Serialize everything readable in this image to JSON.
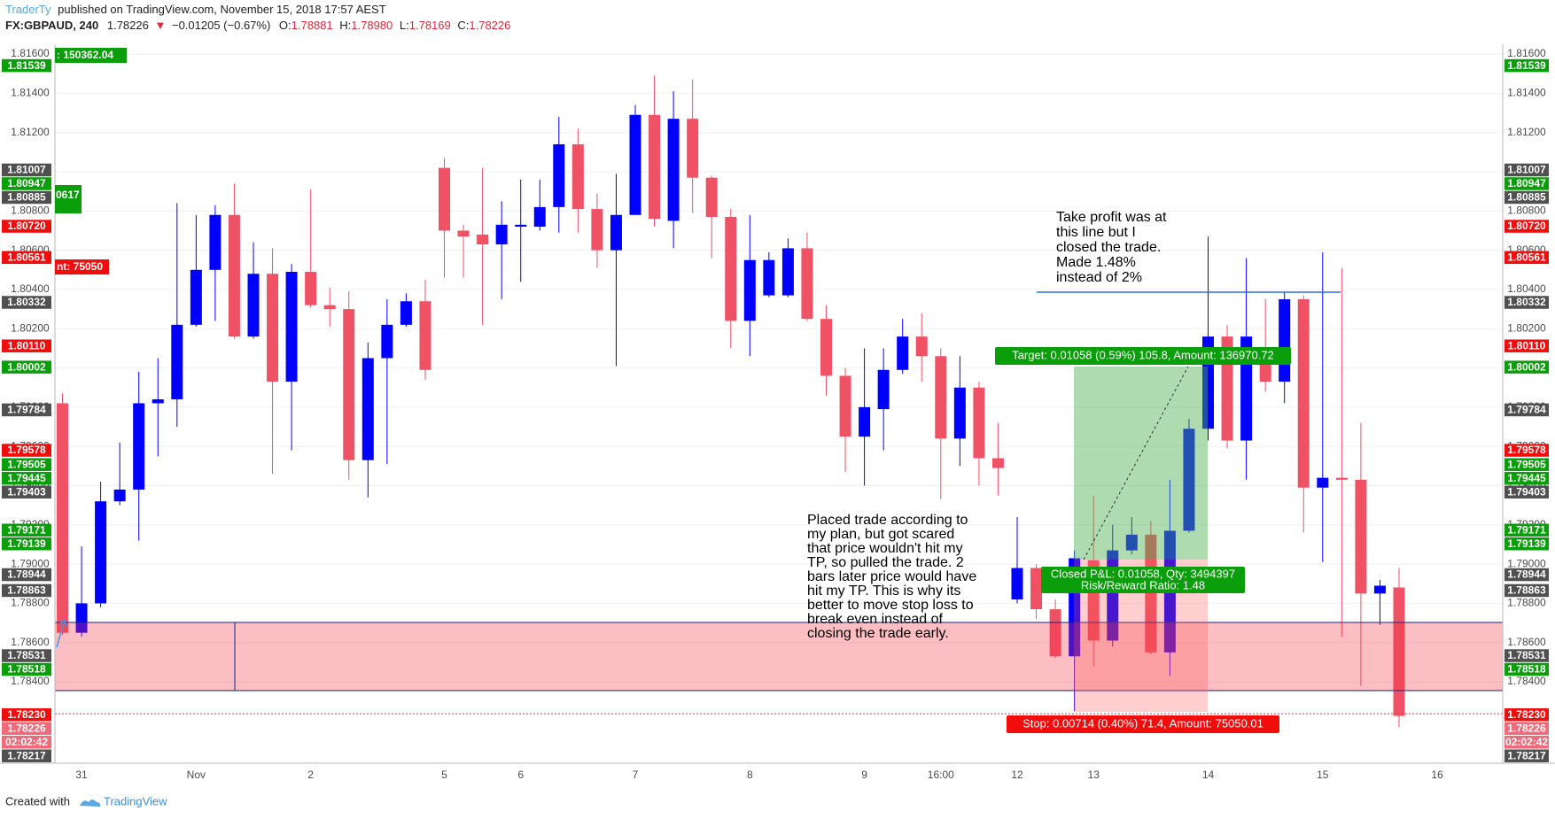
{
  "header": {
    "author": "TraderTy",
    "published": "published on TradingView.com, November 15, 2018 17:57 AEST",
    "symbol": "FX:GBPAUD, 240",
    "last": "1.78226",
    "arrow": "▼",
    "change": "−0.01205 (−0.67%)",
    "ohlc": [
      {
        "key": "O:",
        "value": "1.78881"
      },
      {
        "key": "H:",
        "value": "1.78980"
      },
      {
        "key": "L:",
        "value": "1.78169"
      },
      {
        "key": "C:",
        "value": "1.78226"
      }
    ]
  },
  "footer": {
    "created": "Created with",
    "brand": "TradingView"
  },
  "chart_data": {
    "type": "candlestick",
    "categories": [
      null,
      "31",
      null,
      null,
      null,
      null,
      null,
      "Nov",
      null,
      null,
      null,
      null,
      null,
      "2",
      null,
      null,
      null,
      null,
      null,
      null,
      "5",
      null,
      null,
      null,
      "6",
      null,
      null,
      null,
      null,
      null,
      "7",
      null,
      null,
      null,
      null,
      null,
      "8",
      null,
      null,
      null,
      null,
      null,
      "9",
      null,
      null,
      null,
      "16:00",
      null,
      null,
      null,
      "12",
      null,
      null,
      null,
      "13",
      null,
      null,
      null,
      null,
      null,
      "14",
      null,
      null,
      null,
      null,
      null,
      "15",
      null,
      null,
      null,
      null,
      null,
      "16"
    ],
    "open": [
      1.7982,
      1.7865,
      1.788,
      1.7932,
      1.7938,
      1.7982,
      1.7984,
      1.8022,
      1.805,
      1.8078,
      1.8016,
      1.8048,
      1.7993,
      1.8049,
      1.8032,
      1.803,
      1.7953,
      1.8005,
      1.8022,
      1.8034,
      1.8102,
      1.807,
      1.8068,
      1.8063,
      1.8072,
      1.8072,
      1.8082,
      1.8114,
      1.8081,
      1.806,
      1.8078,
      1.8129,
      1.8075,
      1.8127,
      1.8097,
      1.8077,
      1.8024,
      1.8037,
      1.8037,
      1.8061,
      1.8025,
      1.7996,
      1.7965,
      1.7979,
      1.7999,
      1.8016,
      1.8006,
      1.7964,
      1.799,
      1.7954,
      1.7882,
      1.7898,
      1.7877,
      1.7853,
      1.7902,
      1.7861,
      1.7907,
      1.7915,
      1.7855,
      1.7917,
      1.7969,
      1.8016,
      1.7963,
      1.8004,
      1.7993,
      1.8035,
      1.7939,
      1.7944,
      1.7943,
      1.7885,
      1.78881,
      null,
      null
    ],
    "high": [
      1.7987,
      1.7909,
      1.7942,
      1.7962,
      1.7998,
      1.8005,
      1.8084,
      1.8078,
      1.8083,
      1.8094,
      1.8064,
      1.8061,
      1.8053,
      1.8091,
      1.8041,
      1.8039,
      1.8013,
      1.8035,
      1.8038,
      1.8045,
      1.8107,
      1.8073,
      1.8102,
      1.8085,
      1.8096,
      1.8096,
      1.8128,
      1.8122,
      1.8089,
      1.8099,
      1.8134,
      1.8149,
      1.8141,
      1.8147,
      1.8098,
      1.8081,
      1.8078,
      1.8059,
      1.8066,
      1.8069,
      1.8032,
      1.8,
      1.801,
      1.801,
      1.8025,
      1.8028,
      1.801,
      1.8006,
      1.7993,
      1.7972,
      1.7924,
      1.79,
      1.7882,
      1.7907,
      1.7935,
      1.792,
      1.7924,
      1.7922,
      1.7943,
      1.7974,
      1.8067,
      1.8022,
      1.8056,
      1.8035,
      1.8039,
      1.8037,
      1.8059,
      1.8051,
      1.7972,
      1.7892,
      1.7898,
      null,
      null
    ],
    "low": [
      1.7864,
      1.7863,
      1.7878,
      1.793,
      1.7912,
      1.7955,
      1.797,
      1.8021,
      1.8024,
      1.8015,
      1.8015,
      1.7946,
      1.7958,
      1.8031,
      1.8021,
      1.7943,
      1.7934,
      1.7951,
      1.8021,
      1.7994,
      1.8046,
      1.8046,
      1.8022,
      1.8035,
      1.8044,
      1.807,
      1.8069,
      1.8069,
      1.8051,
      1.8001,
      1.8078,
      1.8072,
      1.8061,
      1.8079,
      1.8056,
      1.801,
      1.8006,
      1.8036,
      1.8036,
      1.8024,
      1.7986,
      1.7947,
      1.794,
      1.7958,
      1.7997,
      1.7993,
      1.7933,
      1.795,
      1.794,
      1.7935,
      1.788,
      1.7872,
      1.7852,
      1.7825,
      1.7848,
      1.7858,
      1.7905,
      1.7854,
      1.7843,
      1.7916,
      1.7963,
      1.7959,
      1.7943,
      1.7988,
      1.7982,
      1.7916,
      1.7901,
      1.7863,
      1.7838,
      1.7869,
      1.78169,
      null,
      null
    ],
    "close": [
      1.7865,
      1.788,
      1.7932,
      1.7938,
      1.7982,
      1.7984,
      1.8022,
      1.805,
      1.8078,
      1.8016,
      1.8048,
      1.7993,
      1.8049,
      1.8032,
      1.803,
      1.7953,
      1.8005,
      1.8022,
      1.8034,
      1.7999,
      1.807,
      1.8067,
      1.8063,
      1.8073,
      1.8073,
      1.8082,
      1.8114,
      1.8081,
      1.806,
      1.8078,
      1.8129,
      1.8076,
      1.8127,
      1.8097,
      1.8077,
      1.8024,
      1.8055,
      1.8055,
      1.8061,
      1.8025,
      1.7996,
      1.7965,
      1.798,
      1.7999,
      1.8016,
      1.8006,
      1.7964,
      1.799,
      1.7954,
      1.7949,
      1.7898,
      1.7877,
      1.7853,
      1.7903,
      1.7861,
      1.7907,
      1.7915,
      1.7855,
      1.7917,
      1.7969,
      1.8016,
      1.7963,
      1.8016,
      1.7993,
      1.8035,
      1.7939,
      1.7944,
      1.7943,
      1.7885,
      1.7889,
      1.78226,
      null,
      null
    ],
    "up_color": "#0000ff",
    "down_color": "#ef5265",
    "ylim": [
      1.77985,
      1.8165
    ],
    "yticks": [
      {
        "value": 1.784,
        "label": "1.78400"
      },
      {
        "value": 1.786,
        "label": "1.78600"
      },
      {
        "value": 1.788,
        "label": "1.78800"
      },
      {
        "value": 1.79,
        "label": "1.79000"
      },
      {
        "value": 1.792,
        "label": "1.79200"
      },
      {
        "value": 1.794,
        "label": "1.79400"
      },
      {
        "value": 1.796,
        "label": "1.79600"
      },
      {
        "value": 1.798,
        "label": "1.79800"
      },
      {
        "value": 1.8,
        "label": "1.80000"
      },
      {
        "value": 1.802,
        "label": "1.80200"
      },
      {
        "value": 1.804,
        "label": "1.80400"
      },
      {
        "value": 1.806,
        "label": "1.80600"
      },
      {
        "value": 1.808,
        "label": "1.80800"
      },
      {
        "value": 1.81,
        "label": "1.81000"
      },
      {
        "value": 1.812,
        "label": "1.81200"
      },
      {
        "value": 1.814,
        "label": "1.81400"
      },
      {
        "value": 1.816,
        "label": "1.81600"
      }
    ],
    "grid": true,
    "price_labels": [
      {
        "value": 1.81539,
        "label": "1.81539",
        "color": "#0a9e0a"
      },
      {
        "value": 1.81007,
        "label": "1.81007",
        "color": "#505050"
      },
      {
        "value": 1.80947,
        "label": "1.80947",
        "color": "#0a9e0a"
      },
      {
        "value": 1.80885,
        "label": "1.80885",
        "color": "#505050"
      },
      {
        "value": 1.8072,
        "label": "1.80720",
        "color": "#f20d0d"
      },
      {
        "value": 1.80561,
        "label": "1.80561",
        "color": "#f20d0d"
      },
      {
        "value": 1.80332,
        "label": "1.80332",
        "color": "#505050"
      },
      {
        "value": 1.8011,
        "label": "1.80110",
        "color": "#f20d0d"
      },
      {
        "value": 1.80002,
        "label": "1.80002",
        "color": "#0a9e0a"
      },
      {
        "value": 1.79784,
        "label": "1.79784",
        "color": "#505050"
      },
      {
        "value": 1.79578,
        "label": "1.79578",
        "color": "#f20d0d"
      },
      {
        "value": 1.79505,
        "label": "1.79505",
        "color": "#0a9e0a"
      },
      {
        "value": 1.79445,
        "label": "1.79445",
        "color": "#0a9e0a"
      },
      {
        "value": 1.79403,
        "label": "1.79403",
        "color": "#505050"
      },
      {
        "value": 1.79171,
        "label": "1.79171",
        "color": "#0a9e0a"
      },
      {
        "value": 1.79139,
        "label": "1.79139",
        "color": "#0a9e0a"
      },
      {
        "value": 1.78944,
        "label": "1.78944",
        "color": "#505050"
      },
      {
        "value": 1.78863,
        "label": "1.78863",
        "color": "#505050"
      },
      {
        "value": 1.78531,
        "label": "1.78531",
        "color": "#505050"
      },
      {
        "value": 1.78518,
        "label": "1.78518",
        "color": "#0a9e0a"
      },
      {
        "value": 1.7823,
        "label": "1.78230",
        "color": "#f20d0d"
      },
      {
        "value": 1.78226,
        "label": "1.78226",
        "color": "#ef6b7a"
      },
      {
        "label": "02:02:42",
        "color": "#ef6b7a"
      },
      {
        "value": 1.78217,
        "label": "1.78217",
        "color": "#505050"
      }
    ],
    "left_tags": [
      ": 150362.04",
      "0617",
      "nt: 75050"
    ],
    "position": {
      "target": "Target: 0.01058 (0.59%) 105.8, Amount: 136970.72",
      "closed": "Closed P&L: 0.01058, Qty: 3494397",
      "ratio": "Risk/Reward Ratio: 1.48",
      "stop": "Stop: 0.00714 (0.40%) 71.4, Amount: 75050.01"
    },
    "notes": [
      [
        "Take profit was at",
        "this  line but I",
        "closed the trade.",
        "Made 1.48%",
        "instead of 2%"
      ],
      [
        "Placed trade according to",
        "my plan, but got scared",
        "that price wouldn't hit my",
        "TP, so pulled the trade. 2",
        "bars later price would have",
        "hit my TP. This is why its",
        "better to move stop loss to",
        "break even instead of",
        "closing the trade early."
      ]
    ]
  }
}
